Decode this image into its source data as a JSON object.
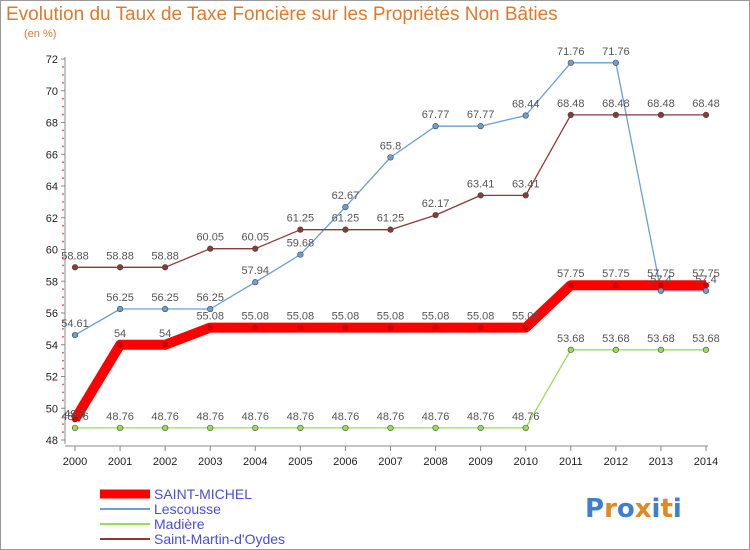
{
  "header": {
    "title": "Evolution du Taux de Taxe Foncière sur les Propriétés Non Bâties",
    "unit": "(en %)"
  },
  "logo": {
    "text": "Proxiti"
  },
  "colors": {
    "title": "#e07a2a",
    "saint_michel": "#ff0000",
    "lescousse": "#6a9fd4",
    "madiere": "#99dd55",
    "saint_martin": "#8b3a3a"
  },
  "chart_data": {
    "type": "line",
    "title": "Evolution du Taux de Taxe Foncière sur les Propriétés Non Bâties",
    "ylabel": "(en %)",
    "xlabel": "",
    "x": [
      2000,
      2001,
      2002,
      2003,
      2004,
      2005,
      2006,
      2007,
      2008,
      2009,
      2010,
      2011,
      2012,
      2013,
      2014
    ],
    "ylim": [
      48,
      72
    ],
    "yticks": [
      48,
      50,
      52,
      54,
      56,
      58,
      60,
      62,
      64,
      66,
      68,
      70,
      72
    ],
    "grid": false,
    "legend_position": "bottom-left",
    "series": [
      {
        "name": "SAINT-MICHEL",
        "color": "#ff0000",
        "values": [
          49.3,
          54,
          54,
          55.08,
          55.08,
          55.08,
          55.08,
          55.08,
          55.08,
          55.08,
          55.08,
          57.75,
          57.75,
          57.75,
          57.75
        ],
        "labels": [
          "49.3",
          "54",
          "54",
          "55.08",
          "55.08",
          "55.08",
          "55.08",
          "55.08",
          "55.08",
          "55.08",
          "55.08",
          "57.75",
          "57.75",
          "57.75",
          "57.75"
        ]
      },
      {
        "name": "Lescousse",
        "color": "#6a9fd4",
        "values": [
          54.61,
          56.25,
          56.25,
          56.25,
          57.94,
          59.68,
          62.67,
          65.8,
          67.77,
          67.77,
          68.44,
          71.76,
          71.76,
          57.4,
          57.4
        ],
        "labels": [
          "54.61",
          "56.25",
          "56.25",
          "56.25",
          "57.94",
          "59.68",
          "62.67",
          "65.8",
          "67.77",
          "67.77",
          "68.44",
          "71.76",
          "71.76",
          "57.4",
          "57.4"
        ]
      },
      {
        "name": "Madière",
        "color": "#99dd55",
        "values": [
          48.76,
          48.76,
          48.76,
          48.76,
          48.76,
          48.76,
          48.76,
          48.76,
          48.76,
          48.76,
          48.76,
          53.68,
          53.68,
          53.68,
          53.68
        ],
        "labels": [
          "48.76",
          "48.76",
          "48.76",
          "48.76",
          "48.76",
          "48.76",
          "48.76",
          "48.76",
          "48.76",
          "48.76",
          "48.76",
          "53.68",
          "53.68",
          "53.68",
          "53.68"
        ]
      },
      {
        "name": "Saint-Martin-d'Oydes",
        "color": "#8b3a3a",
        "values": [
          58.88,
          58.88,
          58.88,
          60.05,
          60.05,
          61.25,
          61.25,
          61.25,
          62.17,
          63.41,
          63.41,
          68.48,
          68.48,
          68.48,
          68.48
        ],
        "labels": [
          "58.88",
          "58.88",
          "58.88",
          "60.05",
          "60.05",
          "61.25",
          "61.25",
          "61.25",
          "62.17",
          "63.41",
          "63.41",
          "68.48",
          "68.48",
          "68.48",
          "68.48"
        ]
      }
    ]
  }
}
